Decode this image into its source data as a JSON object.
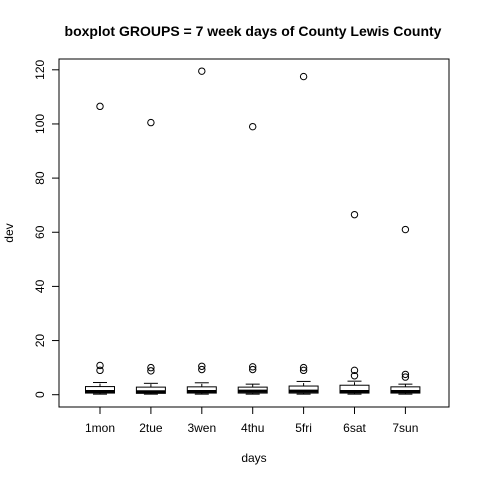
{
  "chart_data": {
    "type": "boxplot",
    "title": "boxplot GROUPS = 7 week days of County Lewis County",
    "xlabel": "days",
    "ylabel": "dev",
    "ylim": [
      -5,
      125
    ],
    "yticks": [
      0,
      20,
      40,
      60,
      80,
      100,
      120
    ],
    "grid": false,
    "categories": [
      "1mon",
      "2tue",
      "3wen",
      "4thu",
      "5fri",
      "6sat",
      "7sun"
    ],
    "boxes": [
      {
        "category": "1mon",
        "whisker_low": 0.2,
        "q1": 0.6,
        "median": 1.2,
        "q3": 3.0,
        "whisker_high": 4.5,
        "outliers": [
          106.5,
          10.8,
          9.0
        ]
      },
      {
        "category": "2tue",
        "whisker_low": 0.2,
        "q1": 0.5,
        "median": 1.1,
        "q3": 2.8,
        "whisker_high": 4.2,
        "outliers": [
          100.5,
          10.0,
          8.8
        ]
      },
      {
        "category": "3wen",
        "whisker_low": 0.2,
        "q1": 0.6,
        "median": 1.2,
        "q3": 2.9,
        "whisker_high": 4.4,
        "outliers": [
          119.5,
          10.5,
          9.3
        ]
      },
      {
        "category": "4thu",
        "whisker_low": 0.2,
        "q1": 0.6,
        "median": 1.3,
        "q3": 2.8,
        "whisker_high": 3.9,
        "outliers": [
          99.0,
          10.3,
          9.3
        ]
      },
      {
        "category": "5fri",
        "whisker_low": 0.2,
        "q1": 0.6,
        "median": 1.3,
        "q3": 3.2,
        "whisker_high": 4.9,
        "outliers": [
          117.5,
          10.0,
          9.0
        ]
      },
      {
        "category": "6sat",
        "whisker_low": 0.2,
        "q1": 0.6,
        "median": 1.2,
        "q3": 3.5,
        "whisker_high": 5.0,
        "outliers": [
          66.5,
          9.0,
          7.0
        ]
      },
      {
        "category": "7sun",
        "whisker_low": 0.2,
        "q1": 0.6,
        "median": 1.2,
        "q3": 2.9,
        "whisker_high": 3.9,
        "outliers": [
          61.0,
          7.5,
          6.5
        ]
      }
    ]
  }
}
